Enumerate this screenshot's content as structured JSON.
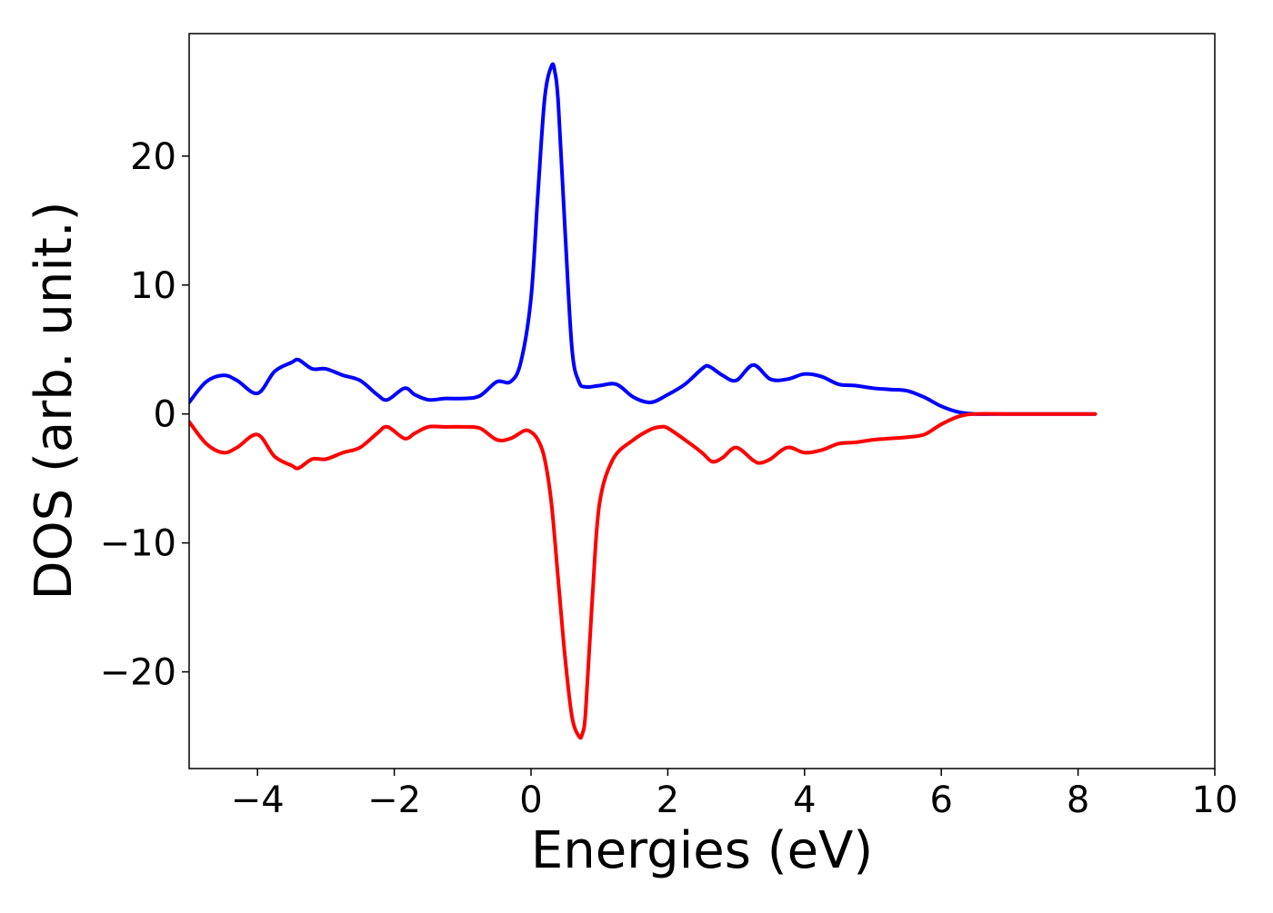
{
  "chart_data": {
    "type": "line",
    "title": "",
    "xlabel": "Energies (eV)",
    "ylabel": "DOS (arb. unit.)",
    "xlim": [
      -5,
      10
    ],
    "ylim": [
      -27.5,
      29.5
    ],
    "grid": false,
    "legend": "none",
    "x_ticks": [
      -4,
      -2,
      0,
      2,
      4,
      6,
      8,
      10
    ],
    "x_tick_labels": [
      "−4",
      "−2",
      "0",
      "2",
      "4",
      "6",
      "8",
      "10"
    ],
    "y_ticks": [
      -20,
      -10,
      0,
      10,
      20
    ],
    "y_tick_labels": [
      "−20",
      "−10",
      "0",
      "10",
      "20"
    ],
    "series": [
      {
        "color": "#0000ff",
        "x": [
          -5.0,
          -4.75,
          -4.5,
          -4.3,
          -4.0,
          -3.75,
          -3.5,
          -3.4,
          -3.2,
          -3.0,
          -2.75,
          -2.5,
          -2.25,
          -2.1,
          -1.85,
          -1.7,
          -1.5,
          -1.25,
          -1.0,
          -0.75,
          -0.5,
          -0.3,
          -0.15,
          0.0,
          0.1,
          0.2,
          0.3,
          0.35,
          0.4,
          0.5,
          0.6,
          0.7,
          0.8,
          1.0,
          1.25,
          1.5,
          1.75,
          2.0,
          2.25,
          2.5,
          2.6,
          2.8,
          3.0,
          3.25,
          3.5,
          3.75,
          4.0,
          4.25,
          4.5,
          4.75,
          5.0,
          5.25,
          5.5,
          5.75,
          6.0,
          6.25,
          6.5,
          7.0,
          7.5,
          8.0,
          8.25
        ],
        "y": [
          0.9,
          2.5,
          3.0,
          2.6,
          1.6,
          3.3,
          4.0,
          4.2,
          3.5,
          3.5,
          3.0,
          2.6,
          1.5,
          1.1,
          2.0,
          1.5,
          1.1,
          1.2,
          1.2,
          1.4,
          2.5,
          2.5,
          4.0,
          9.0,
          17.0,
          24.5,
          27.0,
          26.5,
          24.0,
          14.0,
          5.0,
          2.5,
          2.1,
          2.2,
          2.3,
          1.3,
          0.9,
          1.5,
          2.3,
          3.5,
          3.7,
          3.0,
          2.6,
          3.8,
          2.7,
          2.7,
          3.1,
          2.9,
          2.3,
          2.2,
          2.0,
          1.9,
          1.8,
          1.3,
          0.6,
          0.15,
          0.0,
          0.0,
          0.0,
          0.0,
          0.0
        ]
      },
      {
        "color": "#ff0000",
        "x": [
          -5.0,
          -4.75,
          -4.5,
          -4.3,
          -4.0,
          -3.75,
          -3.5,
          -3.4,
          -3.2,
          -3.0,
          -2.75,
          -2.5,
          -2.25,
          -2.1,
          -1.85,
          -1.7,
          -1.5,
          -1.25,
          -1.0,
          -0.75,
          -0.5,
          -0.3,
          -0.1,
          0.0,
          0.1,
          0.2,
          0.3,
          0.4,
          0.5,
          0.6,
          0.7,
          0.75,
          0.8,
          0.9,
          1.0,
          1.2,
          1.5,
          1.75,
          1.9,
          2.0,
          2.25,
          2.5,
          2.65,
          2.8,
          3.0,
          3.25,
          3.35,
          3.5,
          3.75,
          4.0,
          4.25,
          4.5,
          4.75,
          5.0,
          5.25,
          5.5,
          5.75,
          6.0,
          6.25,
          6.5,
          7.0,
          7.5,
          8.0,
          8.25
        ],
        "y": [
          -0.6,
          -2.3,
          -3.0,
          -2.6,
          -1.6,
          -3.3,
          -4.0,
          -4.2,
          -3.5,
          -3.5,
          -3.0,
          -2.6,
          -1.5,
          -1.0,
          -1.9,
          -1.5,
          -1.0,
          -1.0,
          -1.0,
          -1.1,
          -2.0,
          -1.9,
          -1.3,
          -1.4,
          -2.0,
          -3.5,
          -7.0,
          -13.0,
          -19.0,
          -23.5,
          -25.0,
          -24.8,
          -23.0,
          -14.0,
          -7.0,
          -3.5,
          -2.0,
          -1.2,
          -1.0,
          -1.1,
          -2.0,
          -3.0,
          -3.7,
          -3.4,
          -2.6,
          -3.6,
          -3.8,
          -3.5,
          -2.6,
          -3.0,
          -2.8,
          -2.3,
          -2.2,
          -2.0,
          -1.9,
          -1.8,
          -1.6,
          -0.8,
          -0.2,
          0.0,
          0.0,
          0.0,
          0.0,
          0.0
        ]
      }
    ]
  }
}
